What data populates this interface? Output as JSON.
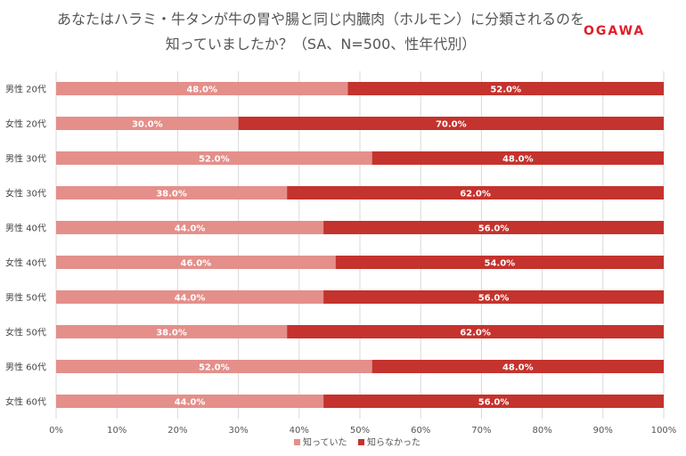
{
  "title": {
    "line1": "あなたはハラミ・牛タンが牛の胃や腸と同じ内臓肉（ホルモン）に分類されるのを",
    "line2": "知っていましたか？（SA、N=500、性年代別）"
  },
  "logo": {
    "text": "OGAWA",
    "color": "#e0202a"
  },
  "chart_data": {
    "type": "bar",
    "orientation": "horizontal",
    "stacked": true,
    "percent": true,
    "categories": [
      "男性 20代",
      "女性 20代",
      "男性 30代",
      "女性 30代",
      "男性 40代",
      "女性 40代",
      "男性 50代",
      "女性 50代",
      "男性 60代",
      "女性 60代"
    ],
    "series": [
      {
        "name": "知っていた",
        "color": "#e48f8a",
        "values": [
          48.0,
          30.0,
          52.0,
          38.0,
          44.0,
          46.0,
          44.0,
          38.0,
          52.0,
          44.0
        ]
      },
      {
        "name": "知らなかった",
        "color": "#c4332d",
        "values": [
          52.0,
          70.0,
          48.0,
          62.0,
          56.0,
          54.0,
          56.0,
          62.0,
          48.0,
          56.0
        ]
      }
    ],
    "xlim": [
      0,
      100
    ],
    "xticks": [
      "0%",
      "10%",
      "20%",
      "30%",
      "40%",
      "50%",
      "60%",
      "70%",
      "80%",
      "90%",
      "100%"
    ],
    "grid": true,
    "legend": "bottom"
  }
}
